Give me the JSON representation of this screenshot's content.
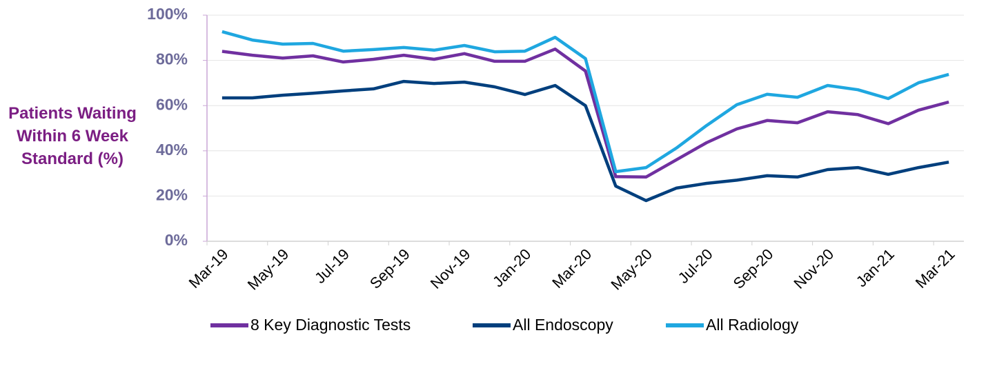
{
  "chart_data": {
    "type": "line",
    "y_label": "Patients Waiting Within 6 Week Standard (%)",
    "categories": [
      "Mar-19",
      null,
      "May-19",
      null,
      "Jul-19",
      null,
      "Sep-19",
      null,
      "Nov-19",
      null,
      "Jan-20",
      null,
      "Mar-20",
      null,
      "May-20",
      null,
      "Jul-20",
      null,
      "Sep-20",
      null,
      "Nov-20",
      null,
      "Jan-21",
      null,
      "Mar-21"
    ],
    "series": [
      {
        "name": "8 Key Diagnostic Tests",
        "color": "#7030A0",
        "values": [
          84,
          82.3,
          81,
          82,
          79.3,
          80.5,
          82.3,
          80.5,
          83,
          79.6,
          79.6,
          85,
          75.3,
          28.6,
          28.4,
          36,
          43.6,
          49.7,
          53.4,
          52.4,
          57.3,
          56,
          52,
          58,
          61.6
        ]
      },
      {
        "name": "All Endoscopy",
        "color": "#003F7D",
        "values": [
          63.4,
          63.4,
          64.6,
          65.5,
          66.5,
          67.4,
          70.7,
          69.8,
          70.4,
          68.3,
          64.9,
          68.9,
          60,
          24.4,
          18,
          23.5,
          25.6,
          27,
          29,
          28.4,
          31.7,
          32.6,
          29.6,
          32.6,
          35
        ]
      },
      {
        "name": "All Radiology",
        "color": "#1FA7E0",
        "values": [
          92.7,
          89,
          87.2,
          87.5,
          84.1,
          84.8,
          85.7,
          84.5,
          86.6,
          83.8,
          84.1,
          90.2,
          80.8,
          30.8,
          32.6,
          41.2,
          51.2,
          60.4,
          65,
          63.7,
          68.9,
          67,
          63.1,
          70.1,
          73.8
        ]
      }
    ],
    "ylim": [
      0,
      100
    ],
    "yticks": [
      {
        "value": 0,
        "label": "0%"
      },
      {
        "value": 20,
        "label": "20%"
      },
      {
        "value": 40,
        "label": "40%"
      },
      {
        "value": 60,
        "label": "60%"
      },
      {
        "value": 80,
        "label": "80%"
      },
      {
        "value": 100,
        "label": "100%"
      }
    ],
    "grid": true
  }
}
